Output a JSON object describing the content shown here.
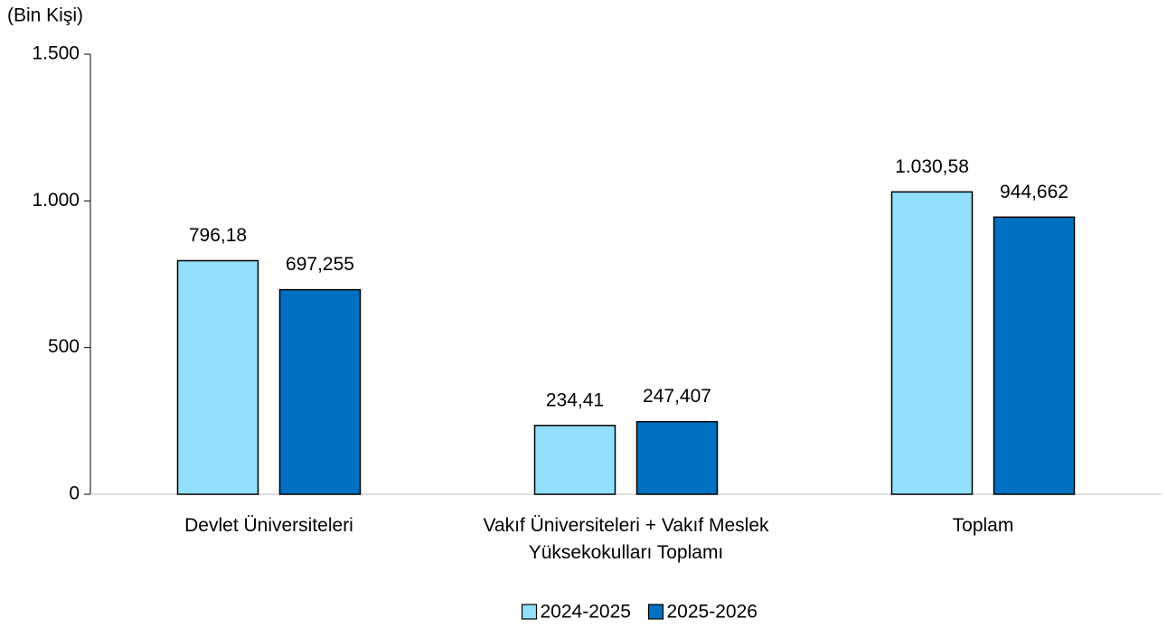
{
  "chart_data": {
    "type": "bar",
    "y_label": "(Bin Kişi)",
    "categories": [
      "Devlet Üniversiteleri",
      "Vakıf Üniversiteleri + Vakıf Meslek Yüksekokulları Toplamı",
      "Toplam"
    ],
    "series": [
      {
        "name": "2024-2025",
        "color": "#92e0fb",
        "values": [
          796.18,
          234.41,
          1030.58
        ],
        "value_labels": [
          "796,18",
          "234,41",
          "1.030,58"
        ]
      },
      {
        "name": "2025-2026",
        "color": "#0070c0",
        "values": [
          697.255,
          247.407,
          944.662
        ],
        "value_labels": [
          "697,255",
          "247,407",
          "944,662"
        ]
      }
    ],
    "ylim": [
      0,
      1500
    ],
    "yticks": [
      0,
      500,
      {
        "value": 1000,
        "label": "1.000"
      },
      {
        "value": 1500,
        "label": "1.500"
      }
    ],
    "legend": "bottom"
  }
}
